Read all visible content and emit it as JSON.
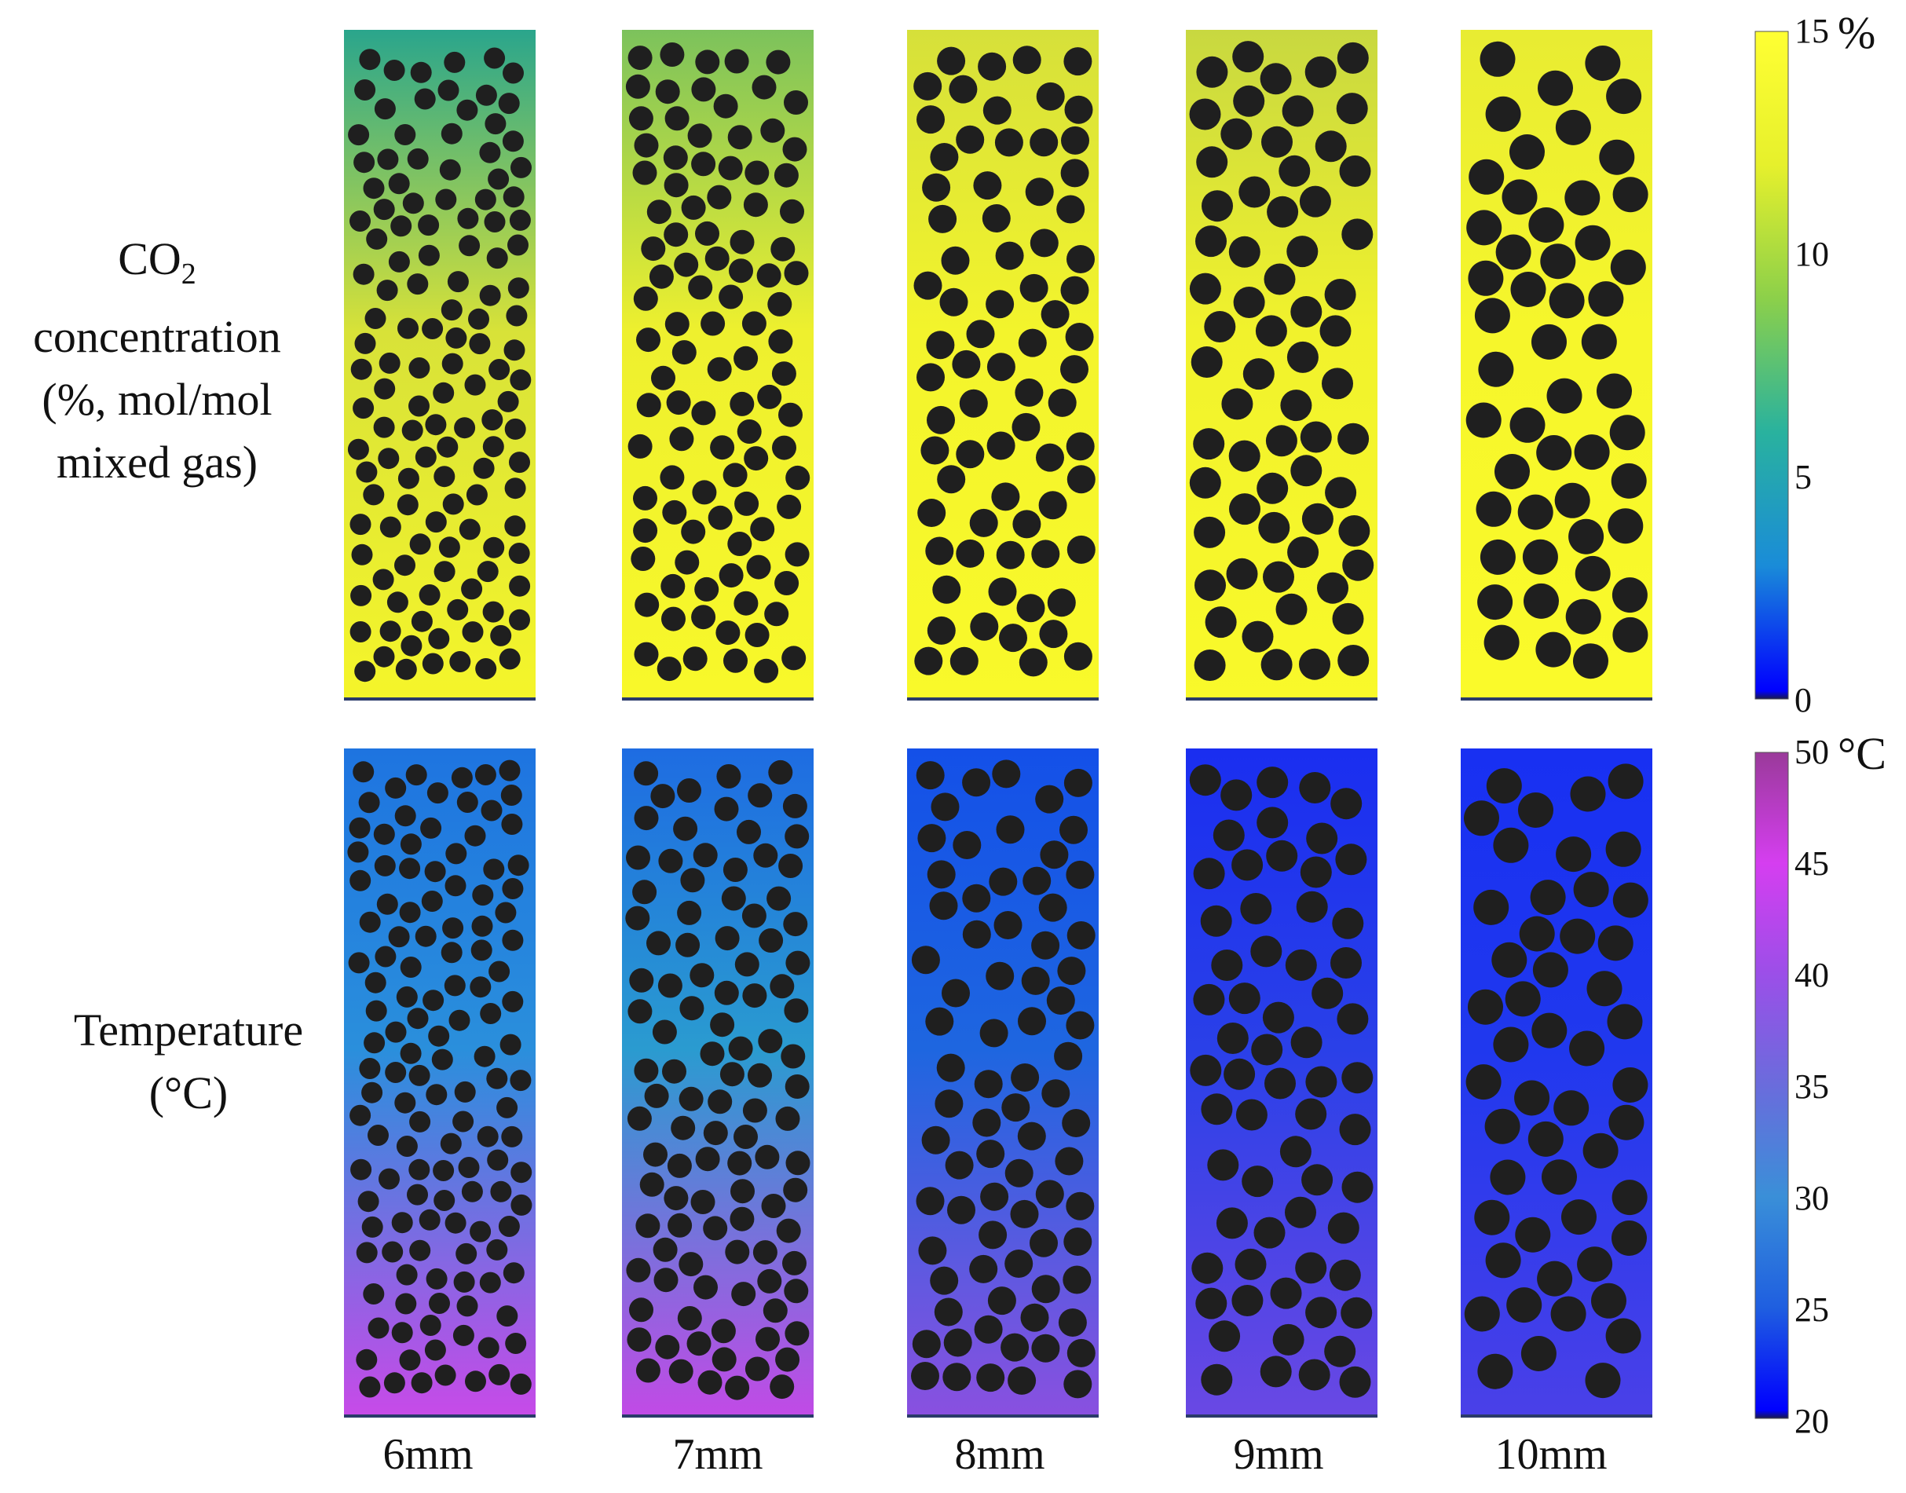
{
  "co2_label": {
    "line1_main": "CO",
    "line1_sub": "2",
    "line2": "concentration",
    "line3": "(%, mol/mol",
    "line4": "mixed gas)"
  },
  "temperature_label": {
    "line1": "Temperature",
    "line2": "(°C)"
  },
  "particle_sizes": [
    "6mm",
    "7mm",
    "8mm",
    "9mm",
    "10mm"
  ],
  "co2_colorbar": {
    "unit": "%",
    "ticks": [
      "15",
      "10",
      "5",
      "0"
    ],
    "range": [
      0,
      15
    ],
    "colors": [
      "#1a1a4a",
      "#0000ff",
      "#1a8cd8",
      "#29b29e",
      "#8cd04a",
      "#e6f02c",
      "#ffff33"
    ]
  },
  "temperature_colorbar": {
    "unit": "°C",
    "ticks": [
      "50",
      "45",
      "40",
      "35",
      "30",
      "25",
      "20"
    ],
    "range": [
      20,
      50
    ],
    "colors": [
      "#1a1a4a",
      "#0000ff",
      "#1f5fe0",
      "#3a8fd8",
      "#6a6cdc",
      "#9b4fe8",
      "#d53ef0",
      "#9a3a9a"
    ]
  },
  "panel_styles": {
    "co2": [
      {
        "top": "#2aa58c",
        "mid": "#d8e238",
        "bottom": "#f5f52a"
      },
      {
        "top": "#7cc25c",
        "mid": "#eef02e",
        "bottom": "#f8f82a"
      },
      {
        "top": "#d6e03a",
        "mid": "#f3f42c",
        "bottom": "#f9f92a"
      },
      {
        "top": "#c8d840",
        "mid": "#f1f22c",
        "bottom": "#f9f92a"
      },
      {
        "top": "#e8ec32",
        "mid": "#f6f62b",
        "bottom": "#fafa2a"
      }
    ],
    "temperature": [
      {
        "top": "#1e74e0",
        "mid": "#2a8fdc",
        "bottom": "#c84ae8"
      },
      {
        "top": "#1e6ce2",
        "mid": "#2a9bd0",
        "bottom": "#c24ae6"
      },
      {
        "top": "#1450e8",
        "mid": "#1e66e0",
        "bottom": "#8a50e0"
      },
      {
        "top": "#1a2ef0",
        "mid": "#2a40e8",
        "bottom": "#6a48e4"
      },
      {
        "top": "#1830f2",
        "mid": "#2038ee",
        "bottom": "#4a40e8"
      }
    ],
    "particle_color": "#1f1f1f"
  }
}
